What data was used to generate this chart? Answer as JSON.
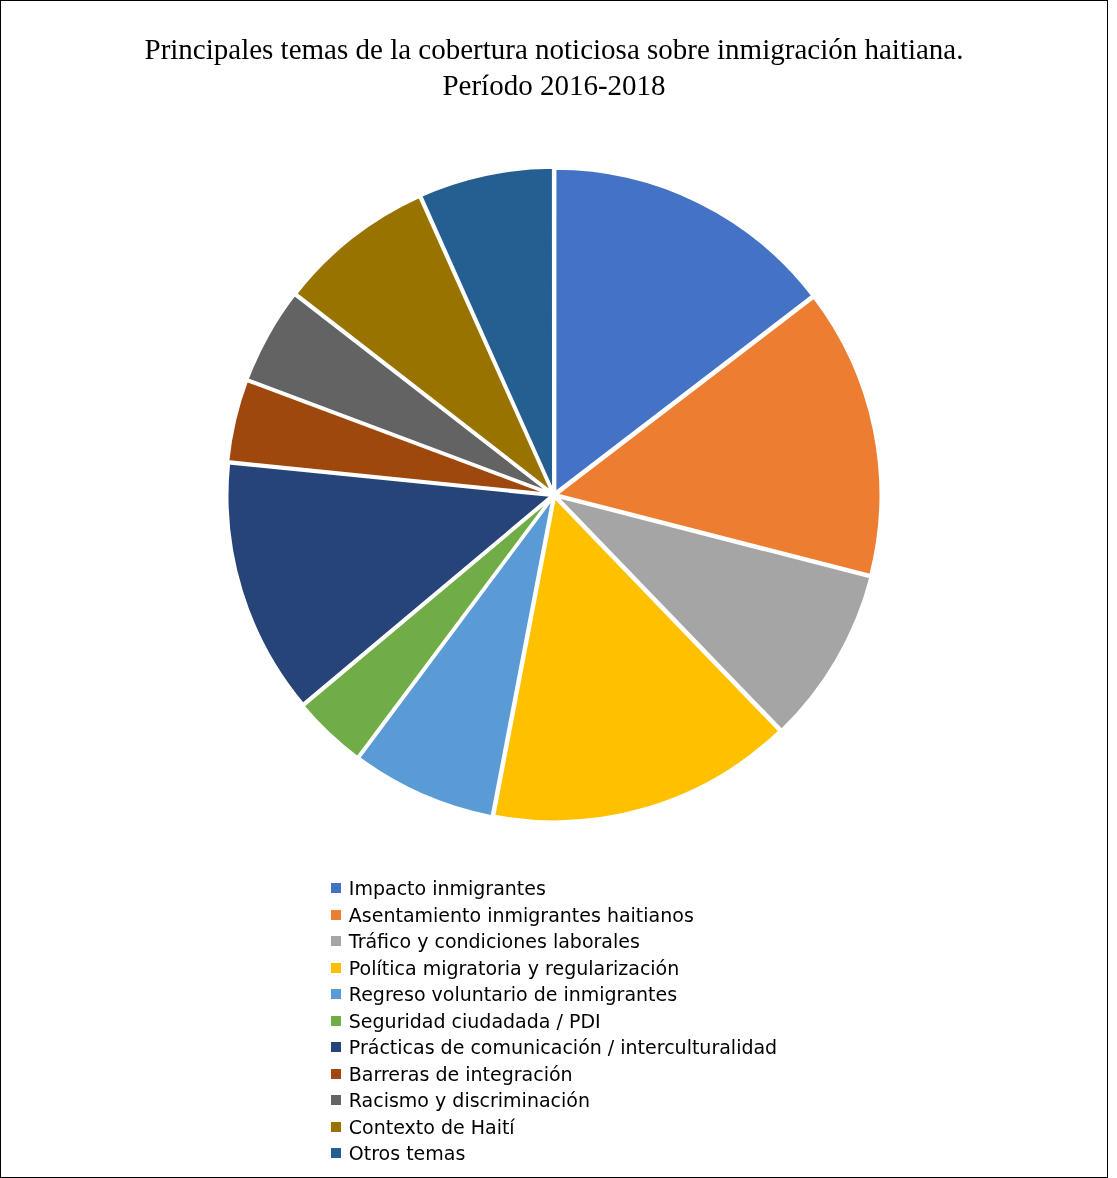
{
  "chart_data": {
    "type": "pie",
    "title": "Principales temas de la cobertura noticiosa sobre inmigración haitiana. Período 2016-2018",
    "categories": [
      "Impacto inmigrantes",
      "Asentamiento inmigrantes haitianos",
      "Tráfico y condiciones laborales",
      "Política migratoria y regularización",
      "Regreso voluntario de inmigrantes",
      "Seguridad ciudadada / PDI",
      "Prácticas de comunicación / interculturalidad",
      "Barreras de integración",
      "Racismo y discriminación",
      "Contexto de Haití",
      "Otros temas"
    ],
    "values": [
      14.6,
      14.4,
      8.8,
      15.2,
      7.2,
      3.7,
      12.7,
      4.1,
      4.8,
      7.8,
      6.7
    ],
    "colors": [
      "#4472c4",
      "#ed7d31",
      "#a5a5a5",
      "#ffc000",
      "#5b9bd5",
      "#70ad47",
      "#264478",
      "#9e480e",
      "#636363",
      "#997300",
      "#255e91"
    ],
    "legend": "bottom"
  }
}
